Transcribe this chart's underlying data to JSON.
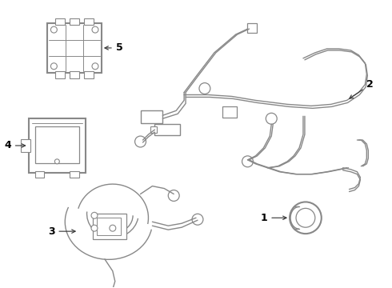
{
  "background_color": "#ffffff",
  "line_color": "#888888",
  "lw": 1.2,
  "lw_thick": 1.8,
  "figsize": [
    4.9,
    3.6
  ],
  "dpi": 100
}
